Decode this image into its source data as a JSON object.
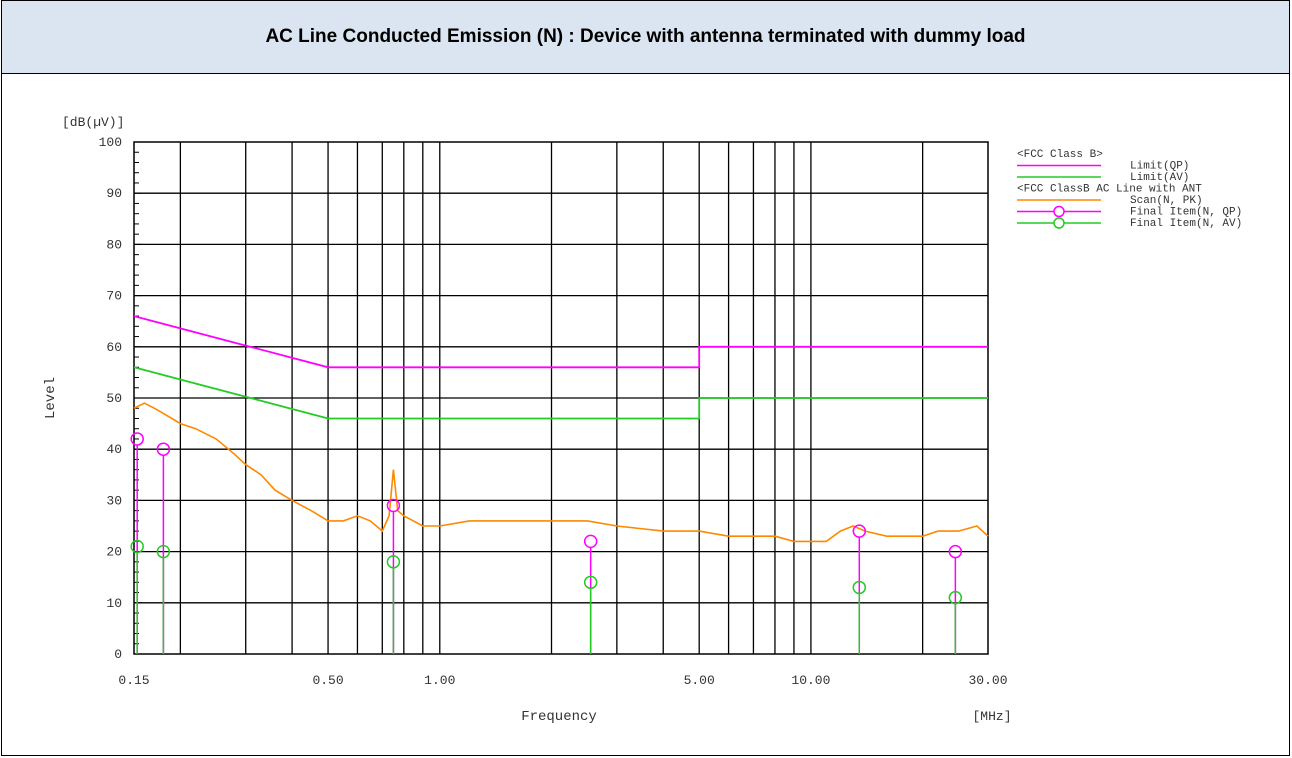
{
  "header": {
    "title": "AC Line Conducted Emission (N) : Device with antenna terminated with dummy load"
  },
  "chart_data": {
    "type": "line",
    "x_scale": "log",
    "x_range": [
      0.15,
      30
    ],
    "y_range": [
      0,
      100
    ],
    "y_unit": "[dB(µV)]",
    "x_unit": "[MHz]",
    "xlabel": "Frequency",
    "ylabel": "Level",
    "x_tick_labels": [
      {
        "x": 0.15,
        "label": "0.15"
      },
      {
        "x": 0.5,
        "label": "0.50"
      },
      {
        "x": 1.0,
        "label": "1.00"
      },
      {
        "x": 5.0,
        "label": "5.00"
      },
      {
        "x": 10.0,
        "label": "10.00"
      },
      {
        "x": 30.0,
        "label": "30.00"
      }
    ],
    "y_ticks": [
      0,
      10,
      20,
      30,
      40,
      50,
      60,
      70,
      80,
      90,
      100
    ],
    "colors": {
      "qp": "#ff00ff",
      "av": "#22cc22",
      "scan": "#ff8800",
      "grid": "#000000"
    },
    "legend": {
      "position": "right",
      "items": [
        {
          "type": "header",
          "text": "<FCC Class B>"
        },
        {
          "type": "line",
          "color": "#ff00ff",
          "text": "Limit(QP)"
        },
        {
          "type": "line",
          "color": "#22cc22",
          "text": "Limit(AV)"
        },
        {
          "type": "header",
          "text": "<FCC ClassB AC Line with ANT"
        },
        {
          "type": "line",
          "color": "#ff8800",
          "text": "Scan(N, PK)"
        },
        {
          "type": "marker",
          "color": "#ff00ff",
          "text": "Final Item(N, QP)"
        },
        {
          "type": "marker",
          "color": "#22cc22",
          "text": "Final Item(N, AV)"
        }
      ]
    },
    "series": [
      {
        "name": "Limit(QP)",
        "x": [
          0.15,
          0.5,
          5.0,
          5.0,
          30.0
        ],
        "y": [
          66,
          56,
          56,
          60,
          60
        ]
      },
      {
        "name": "Limit(AV)",
        "x": [
          0.15,
          0.5,
          5.0,
          5.0,
          30.0
        ],
        "y": [
          56,
          46,
          46,
          50,
          50
        ]
      },
      {
        "name": "Scan(N, PK)",
        "x": [
          0.15,
          0.16,
          0.17,
          0.18,
          0.2,
          0.22,
          0.25,
          0.28,
          0.3,
          0.33,
          0.36,
          0.4,
          0.45,
          0.5,
          0.55,
          0.6,
          0.65,
          0.7,
          0.73,
          0.75,
          0.77,
          0.8,
          0.9,
          1.0,
          1.2,
          1.5,
          2.0,
          2.5,
          3.0,
          4.0,
          5.0,
          6.0,
          7.0,
          8.0,
          9.0,
          10.0,
          11.0,
          12.0,
          13.0,
          14.0,
          16.0,
          18.0,
          20.0,
          22.0,
          25.0,
          28.0,
          30.0
        ],
        "y": [
          48,
          49,
          48,
          47,
          45,
          44,
          42,
          39,
          37,
          35,
          32,
          30,
          28,
          26,
          26,
          27,
          26,
          24,
          27,
          36,
          28,
          27,
          25,
          25,
          26,
          26,
          26,
          26,
          25,
          24,
          24,
          23,
          23,
          23,
          22,
          22,
          22,
          24,
          25,
          24,
          23,
          23,
          23,
          24,
          24,
          25,
          23
        ]
      },
      {
        "name": "Final Item(N, QP)",
        "x": [
          0.153,
          0.18,
          0.75,
          2.55,
          13.5,
          24.5
        ],
        "y": [
          42,
          40,
          29,
          22,
          24,
          20
        ]
      },
      {
        "name": "Final Item(N, AV)",
        "x": [
          0.153,
          0.18,
          0.75,
          2.55,
          13.5,
          24.5
        ],
        "y": [
          21,
          20,
          18,
          14,
          13,
          11
        ]
      }
    ]
  }
}
